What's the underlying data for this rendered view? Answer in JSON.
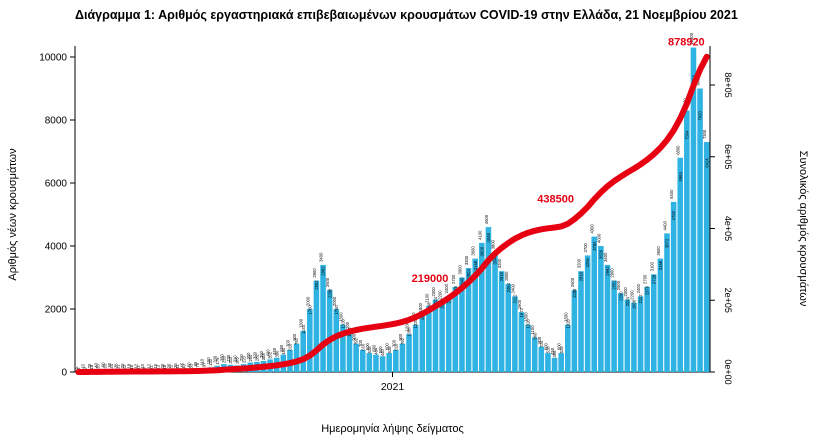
{
  "title": "Διάγραμμα 1: Αριθμός εργαστηριακά επιβεβαιωμένων κρουσμάτων COVID-19 στην Ελλάδα, 21 Νοεμβρίου 2021",
  "chart_data": {
    "type": "bar",
    "xlabel": "Ημερομηνία λήψης δείγματος",
    "ylabel_left": "Αριθμός νέων κρουσμάτων",
    "ylabel_right": "Συνολικός αριθμός κρουσμάτων",
    "x_tick_labels": [
      "2021"
    ],
    "x_tick_fractions": [
      0.5
    ],
    "x_range_note": "daily samples from early 2020 to 21 Nov 2021, approx weekly resolution",
    "yticks_left": [
      0,
      2000,
      4000,
      6000,
      8000,
      10000
    ],
    "ylim_left": [
      0,
      10500
    ],
    "yticks_right_labels": [
      "0e+00",
      "2e+05",
      "4e+05",
      "6e+05",
      "8e+05"
    ],
    "yticks_right_values": [
      0,
      200000,
      400000,
      600000,
      800000
    ],
    "ylim_right": [
      0,
      900000
    ],
    "grid": false,
    "legend": "none",
    "series": [
      {
        "name": "daily-new-cases",
        "type": "bar",
        "color": "#2fb3e3",
        "label_color": "#000000",
        "values": [
          5,
          10,
          20,
          40,
          60,
          50,
          35,
          25,
          18,
          12,
          10,
          12,
          15,
          20,
          25,
          35,
          45,
          60,
          85,
          110,
          150,
          200,
          250,
          230,
          210,
          250,
          300,
          320,
          350,
          400,
          450,
          550,
          700,
          900,
          1300,
          2000,
          2900,
          3400,
          2600,
          2000,
          1500,
          1200,
          900,
          700,
          600,
          550,
          500,
          600,
          700,
          900,
          1200,
          1500,
          1800,
          2100,
          2300,
          2200,
          2400,
          2700,
          3000,
          3300,
          3600,
          4100,
          4600,
          3800,
          3200,
          2800,
          2400,
          1900,
          1500,
          1100,
          800,
          600,
          450,
          600,
          1500,
          2600,
          3200,
          3700,
          4300,
          4000,
          3400,
          2900,
          2500,
          2300,
          2200,
          2400,
          2700,
          3100,
          3600,
          4400,
          5400,
          6800,
          8300,
          10300,
          9000,
          7300
        ]
      },
      {
        "name": "cumulative-cases",
        "type": "line",
        "color": "#e60012",
        "total": 878920
      }
    ],
    "annotations": [
      {
        "text": "878920",
        "color": "#e60012",
        "position": "end"
      },
      {
        "text": "438500",
        "color": "#e60012",
        "at_value": 438500
      },
      {
        "text": "219000",
        "color": "#e60012",
        "at_value": 219000
      }
    ]
  }
}
